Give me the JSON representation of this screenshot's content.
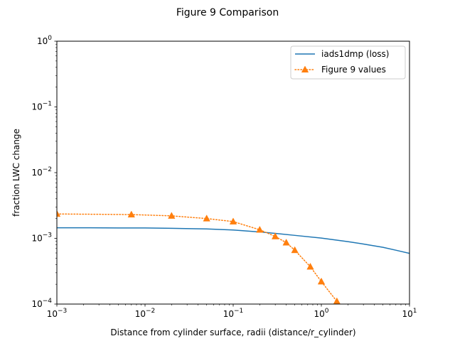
{
  "chart_data": {
    "type": "line",
    "title": "Figure 9 Comparison",
    "xlabel": "Distance from cylinder surface, radii (distance/r_cylinder)",
    "ylabel": "fraction LWC change",
    "xscale": "log",
    "yscale": "log",
    "xlim": [
      0.001,
      10
    ],
    "ylim": [
      0.0001,
      1
    ],
    "x_ticks": [
      {
        "value": 0.001,
        "base": "10",
        "exp": "−3"
      },
      {
        "value": 0.01,
        "base": "10",
        "exp": "−2"
      },
      {
        "value": 0.1,
        "base": "10",
        "exp": "−1"
      },
      {
        "value": 1,
        "base": "10",
        "exp": "0"
      },
      {
        "value": 10,
        "base": "10",
        "exp": "1"
      }
    ],
    "y_ticks": [
      {
        "value": 0.0001,
        "base": "10",
        "exp": "−4"
      },
      {
        "value": 0.001,
        "base": "10",
        "exp": "−3"
      },
      {
        "value": 0.01,
        "base": "10",
        "exp": "−2"
      },
      {
        "value": 0.1,
        "base": "10",
        "exp": "−1"
      },
      {
        "value": 1,
        "base": "10",
        "exp": "0"
      }
    ],
    "grid": false,
    "legend_position": "top-right",
    "series": [
      {
        "name": "iads1dmp (loss)",
        "color": "#1f77b4",
        "line_style": "solid",
        "marker": "none",
        "x": [
          0.001,
          0.002,
          0.005,
          0.01,
          0.02,
          0.05,
          0.1,
          0.2,
          0.3,
          0.5,
          1,
          2,
          3,
          5,
          7,
          10
        ],
        "y": [
          0.00145,
          0.00145,
          0.00144,
          0.00144,
          0.00142,
          0.00139,
          0.00134,
          0.00125,
          0.00119,
          0.00111,
          0.00101,
          0.00089,
          0.00082,
          0.00073,
          0.00066,
          0.00059
        ]
      },
      {
        "name": "Figure 9 values",
        "color": "#ff7f0e",
        "line_style": "dotted",
        "marker": "triangle",
        "x": [
          0.001,
          0.007,
          0.02,
          0.05,
          0.1,
          0.2,
          0.3,
          0.4,
          0.5,
          0.75,
          1.0,
          1.5
        ],
        "y": [
          0.00235,
          0.0023,
          0.0022,
          0.002,
          0.0018,
          0.00135,
          0.00107,
          0.00086,
          0.00066,
          0.00037,
          0.00022,
          0.00011
        ]
      }
    ]
  }
}
